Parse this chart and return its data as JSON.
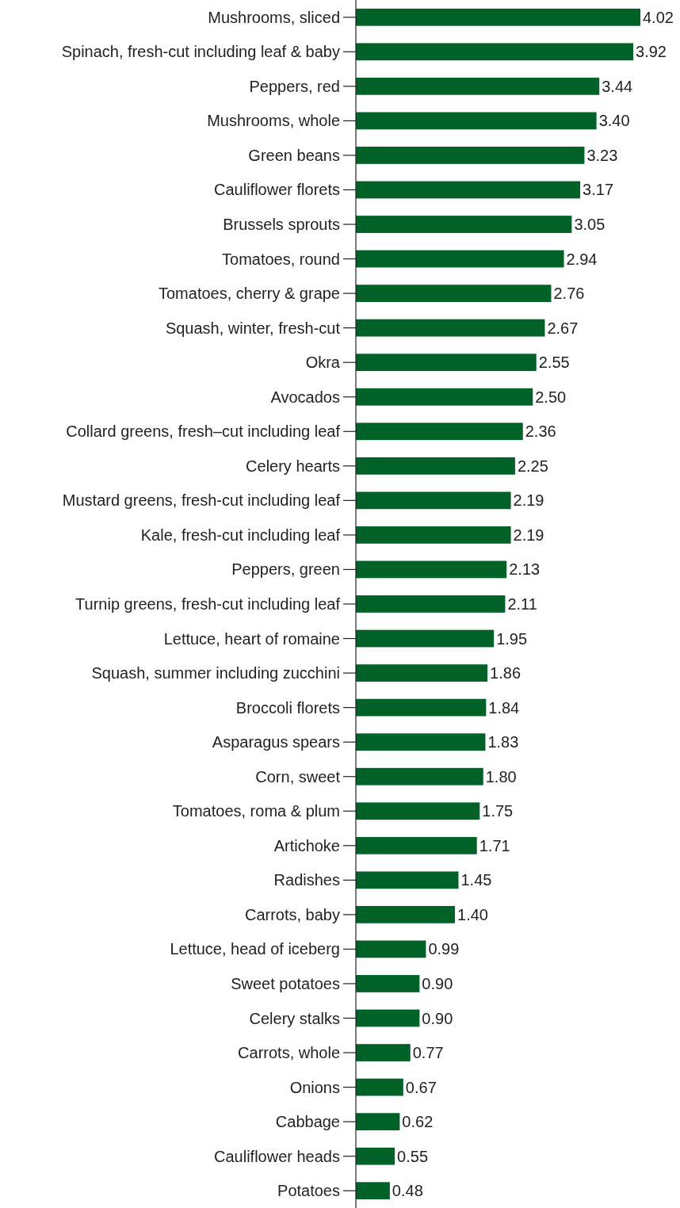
{
  "chart_data": {
    "type": "bar",
    "orientation": "horizontal",
    "value_labels": [
      "4.02",
      "3.92",
      "3.44",
      "3.40",
      "3.23",
      "3.17",
      "3.05",
      "2.94",
      "2.76",
      "2.67",
      "2.55",
      "2.50",
      "2.36",
      "2.25",
      "2.19",
      "2.19",
      "2.13",
      "2.11",
      "1.95",
      "1.86",
      "1.84",
      "1.83",
      "1.80",
      "1.75",
      "1.71",
      "1.45",
      "1.40",
      "0.99",
      "0.90",
      "0.90",
      "0.77",
      "0.67",
      "0.62",
      "0.55",
      "0.48"
    ],
    "color": "#006227",
    "categories": [
      "Mushrooms, sliced",
      "Spinach, fresh-cut including leaf & baby",
      "Peppers, red",
      "Mushrooms, whole",
      "Green beans",
      "Cauliflower florets",
      "Brussels sprouts",
      "Tomatoes, round",
      "Tomatoes, cherry & grape",
      "Squash, winter, fresh-cut",
      "Okra",
      "Avocados",
      "Collard greens, fresh–cut including leaf",
      "Celery hearts",
      "Mustard greens, fresh-cut including leaf",
      "Kale, fresh-cut including leaf",
      "Peppers, green",
      "Turnip greens, fresh-cut including leaf",
      "Lettuce, heart of romaine",
      "Squash, summer including zucchini",
      "Broccoli florets",
      "Asparagus spears",
      "Corn, sweet",
      "Tomatoes, roma & plum",
      "Artichoke",
      "Radishes",
      "Carrots, baby",
      "Lettuce, head of iceberg",
      "Sweet potatoes",
      "Celery stalks",
      "Carrots, whole",
      "Onions",
      "Cabbage",
      "Cauliflower heads",
      "Potatoes"
    ],
    "values": [
      4.02,
      3.92,
      3.44,
      3.4,
      3.23,
      3.17,
      3.05,
      2.94,
      2.76,
      2.67,
      2.55,
      2.5,
      2.36,
      2.25,
      2.19,
      2.19,
      2.13,
      2.11,
      1.95,
      1.86,
      1.84,
      1.83,
      1.8,
      1.75,
      1.71,
      1.45,
      1.4,
      0.99,
      0.9,
      0.9,
      0.77,
      0.67,
      0.62,
      0.55,
      0.48
    ]
  }
}
